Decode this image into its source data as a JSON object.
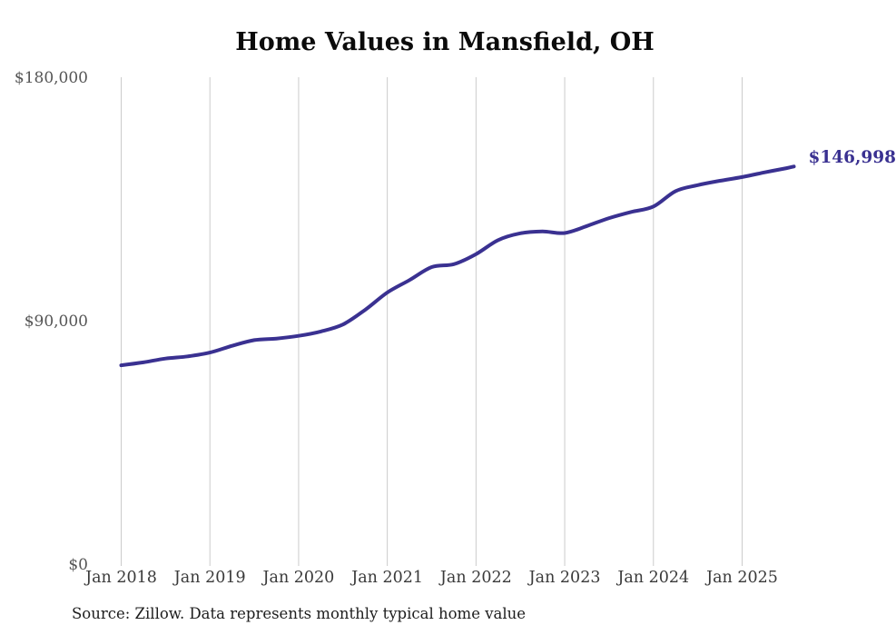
{
  "page": {
    "background": "#ffffff"
  },
  "chart": {
    "title": "Home Values in Mansfield, OH",
    "end_label": "$146,998",
    "source_note": "Source: Zillow. Data represents monthly typical home value",
    "colors": {
      "line": "#3a3191",
      "end_label": "#3a3191",
      "grid": "#cbcbcb",
      "title": "#0b0b0b",
      "y_tick_text": "#555555",
      "x_tick_text": "#3a3a3a",
      "source_text": "#1d1d1d"
    }
  },
  "chart_data": {
    "type": "line",
    "title": "Home Values in Mansfield, OH",
    "ylabel": "",
    "xlabel": "",
    "unit": "USD",
    "ylim": [
      0,
      180000
    ],
    "grid": "vertical-only",
    "legend": false,
    "line_color": "#3a3191",
    "end_annotation": "$146,998",
    "series_name": "Typical home value (monthly, Zillow)",
    "x": [
      "2018-01",
      "2018-04",
      "2018-07",
      "2018-10",
      "2019-01",
      "2019-04",
      "2019-07",
      "2019-10",
      "2020-01",
      "2020-04",
      "2020-07",
      "2020-10",
      "2021-01",
      "2021-04",
      "2021-07",
      "2021-10",
      "2022-01",
      "2022-04",
      "2022-07",
      "2022-10",
      "2023-01",
      "2023-04",
      "2023-07",
      "2023-10",
      "2024-01",
      "2024-04",
      "2024-07",
      "2024-10",
      "2025-01",
      "2025-04",
      "2025-07",
      "2025-08"
    ],
    "values": [
      73500,
      74600,
      76000,
      76800,
      78200,
      80700,
      82800,
      83400,
      84400,
      86000,
      88600,
      94000,
      100400,
      105000,
      109800,
      110900,
      114600,
      119800,
      122300,
      123000,
      122400,
      125000,
      127900,
      130200,
      132200,
      137900,
      140100,
      141700,
      143100,
      144800,
      146400,
      146998
    ],
    "y_ticks": [
      {
        "label": "$180,000",
        "value": 180000
      },
      {
        "label": "$90,000",
        "value": 90000
      },
      {
        "label": "$0",
        "value": 0
      }
    ],
    "x_ticks": [
      {
        "label": "Jan 2018",
        "month": "2018-01"
      },
      {
        "label": "Jan 2019",
        "month": "2019-01"
      },
      {
        "label": "Jan 2020",
        "month": "2020-01"
      },
      {
        "label": "Jan 2021",
        "month": "2021-01"
      },
      {
        "label": "Jan 2022",
        "month": "2022-01"
      },
      {
        "label": "Jan 2023",
        "month": "2023-01"
      },
      {
        "label": "Jan 2024",
        "month": "2024-01"
      },
      {
        "label": "Jan 2025",
        "month": "2025-01"
      }
    ]
  }
}
